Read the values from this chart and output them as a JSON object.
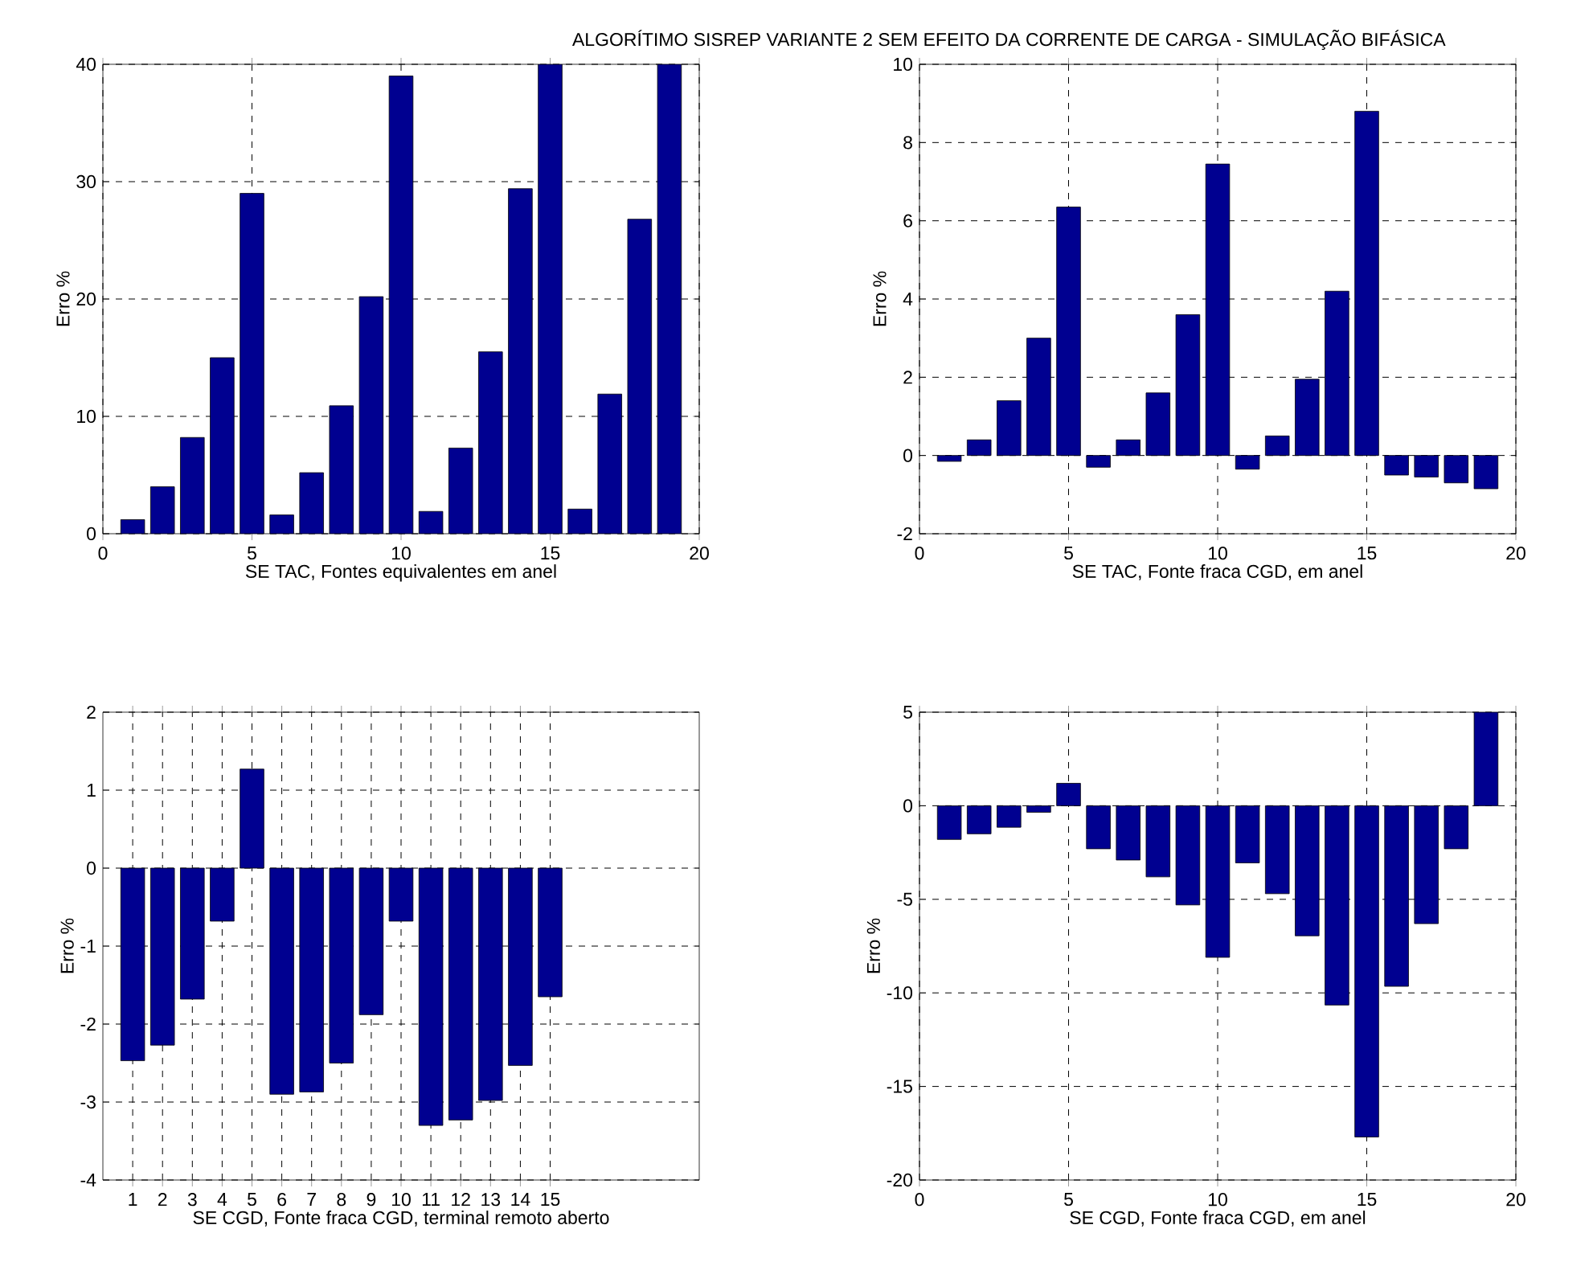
{
  "chart_data": [
    {
      "type": "bar",
      "xlabel": "SE TAC, Fontes equivalentes em anel",
      "ylabel": "Erro %",
      "x": [
        1,
        2,
        3,
        4,
        5,
        6,
        7,
        8,
        9,
        10,
        11,
        12,
        13,
        14,
        15,
        16,
        17,
        18,
        19
      ],
      "values": [
        1.2,
        4,
        8.2,
        15,
        29,
        1.6,
        5.2,
        10.9,
        20.2,
        39,
        1.9,
        7.3,
        15.5,
        29.4,
        40,
        2.1,
        11.9,
        26.8,
        40
      ],
      "color": "#000090",
      "xlim": [
        0,
        20
      ],
      "ylim": [
        0,
        40
      ],
      "xticks": [
        0,
        5,
        10,
        15,
        20
      ],
      "yticks": [
        0,
        10,
        20,
        30,
        40
      ],
      "grid": true
    },
    {
      "type": "bar",
      "title": "ALGORÍTIMO SISREP VARIANTE 2 SEM EFEITO DA CORRENTE DE CARGA - SIMULAÇÃO BIFÁSICA",
      "xlabel": "SE TAC, Fonte fraca CGD, em anel",
      "ylabel": "Erro %",
      "x": [
        1,
        2,
        3,
        4,
        5,
        6,
        7,
        8,
        9,
        10,
        11,
        12,
        13,
        14,
        15,
        16,
        17,
        18,
        19
      ],
      "values": [
        -0.15,
        0.4,
        1.4,
        3.0,
        6.35,
        -0.3,
        0.4,
        1.6,
        3.6,
        7.45,
        -0.35,
        0.5,
        1.95,
        4.2,
        8.8,
        -0.5,
        -0.55,
        -0.7,
        -0.85
      ],
      "color": "#000090",
      "xlim": [
        0,
        20
      ],
      "ylim": [
        -2,
        10
      ],
      "xticks": [
        0,
        5,
        10,
        15,
        20
      ],
      "yticks": [
        -2,
        0,
        2,
        4,
        6,
        8,
        10
      ],
      "grid": true
    },
    {
      "type": "bar",
      "xlabel": "SE CGD, Fonte fraca CGD, terminal remoto aberto",
      "ylabel": "Erro %",
      "x": [
        1,
        2,
        3,
        4,
        5,
        6,
        7,
        8,
        9,
        10,
        11,
        12,
        13,
        14,
        15
      ],
      "values": [
        -2.47,
        -2.27,
        -1.68,
        -0.68,
        1.27,
        -2.9,
        -2.87,
        -2.5,
        -1.88,
        -0.68,
        -3.3,
        -3.23,
        -2.98,
        -2.53,
        -1.65
      ],
      "color": "#000090",
      "xlim": [
        0,
        20
      ],
      "ylim": [
        -4,
        2
      ],
      "xticks": [
        1,
        2,
        3,
        4,
        5,
        6,
        7,
        8,
        9,
        10,
        11,
        12,
        13,
        14,
        15
      ],
      "yticks": [
        -4,
        -3,
        -2,
        -1,
        0,
        1,
        2
      ],
      "grid": true
    },
    {
      "type": "bar",
      "xlabel": "SE CGD, Fonte fraca CGD, em anel",
      "ylabel": "Erro %",
      "x": [
        1,
        2,
        3,
        4,
        5,
        6,
        7,
        8,
        9,
        10,
        11,
        12,
        13,
        14,
        15,
        16,
        17,
        18,
        19
      ],
      "values": [
        -1.8,
        -1.5,
        -1.15,
        -0.35,
        1.2,
        -2.3,
        -2.9,
        -3.8,
        -5.3,
        -8.1,
        -3.05,
        -4.7,
        -6.95,
        -10.65,
        -17.7,
        -9.65,
        -6.3,
        -2.3,
        5
      ],
      "color": "#000090",
      "xlim": [
        0,
        20
      ],
      "ylim": [
        -20,
        5
      ],
      "xticks": [
        0,
        5,
        10,
        15,
        20
      ],
      "yticks": [
        -20,
        -15,
        -10,
        -5,
        0,
        5
      ],
      "grid": true
    }
  ]
}
